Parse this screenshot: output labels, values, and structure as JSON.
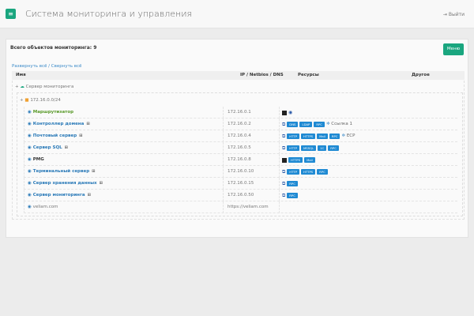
{
  "header": {
    "title": "Система мониторинга и управления",
    "logout": "Выйти"
  },
  "card": {
    "total": "Всего объектов мониторинга: 9",
    "menu": "Меню",
    "expand": "Развернуть всё",
    "collapse": "Свернуть всё"
  },
  "columns": [
    "Имя",
    "IP / Netbios / DNS",
    "Ресурсы",
    "Другое"
  ],
  "tree": {
    "server": "Сервер мониторинга",
    "network": "172.16.0.0/24"
  },
  "rows": [
    {
      "name": "Маршрутизатор",
      "ip": "172.16.0.1",
      "win": false,
      "color": "#5a9a2a",
      "tags": [],
      "lead": "terminal",
      "extra": ""
    },
    {
      "name": "Контроллер домена",
      "ip": "172.16.0.2",
      "win": true,
      "tags": [
        "DNS",
        "LDAP",
        "RPC"
      ],
      "lead": "rdp",
      "extra": "Ссылка 1"
    },
    {
      "name": "Почтовый сервер",
      "ip": "172.16.0.4",
      "win": true,
      "tags": [
        "HTTP",
        "HTTPS",
        "Mail",
        "RPC"
      ],
      "lead": "rdp",
      "extra": "ECP"
    },
    {
      "name": "Сервер SQL",
      "ip": "172.16.0.5",
      "win": true,
      "tags": [
        "HTTP",
        "MSSQL",
        "1C",
        "RPC"
      ],
      "lead": "rdp",
      "extra": ""
    },
    {
      "name": "PMG",
      "ip": "172.16.0.8",
      "win": false,
      "color": "#333",
      "tags": [
        "HTTPS",
        "Mail"
      ],
      "lead": "terminal",
      "extra": ""
    },
    {
      "name": "Терминальный сервер",
      "ip": "172.16.0.10",
      "win": true,
      "tags": [
        "HTTP",
        "HTTPS",
        "RPC"
      ],
      "lead": "rdp",
      "extra": ""
    },
    {
      "name": "Сервер хранения данных",
      "ip": "172.16.0.15",
      "win": true,
      "tags": [
        "RPC"
      ],
      "lead": "rdp",
      "extra": ""
    },
    {
      "name": "Сервер мониторинга",
      "ip": "172.16.0.50",
      "win": true,
      "tags": [
        "RPC"
      ],
      "lead": "rdp",
      "extra": ""
    },
    {
      "name": "veliam.com",
      "ip": "https://veliam.com",
      "win": false,
      "color": "#777",
      "normal": true,
      "tags": [],
      "lead": "",
      "extra": ""
    }
  ]
}
